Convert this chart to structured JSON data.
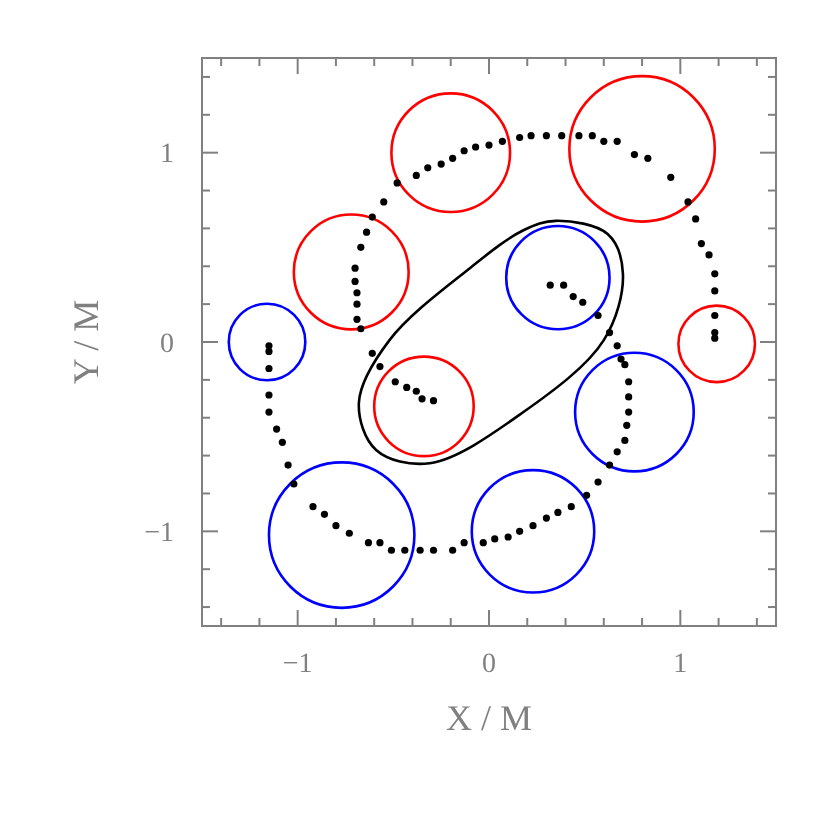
{
  "chart_data": {
    "type": "scatter",
    "xlabel": "X / M",
    "ylabel": "Y / M",
    "xlim": [
      -1.5,
      1.5
    ],
    "ylim": [
      -1.5,
      1.5
    ],
    "xticks": [
      {
        "value": -1.4,
        "label": null
      },
      {
        "value": -1.2,
        "label": null
      },
      {
        "value": -1,
        "label": "−1"
      },
      {
        "value": -0.8,
        "label": null
      },
      {
        "value": -0.6,
        "label": null
      },
      {
        "value": -0.4,
        "label": null
      },
      {
        "value": -0.2,
        "label": null
      },
      0,
      {
        "value": 0.2,
        "label": null
      },
      {
        "value": 0.4,
        "label": null
      },
      {
        "value": 0.6,
        "label": null
      },
      {
        "value": 0.8,
        "label": null
      },
      1,
      {
        "value": 1.2,
        "label": null
      },
      {
        "value": 1.4,
        "label": null
      }
    ],
    "yticks": [
      {
        "value": -1.4,
        "label": null
      },
      {
        "value": -1.2,
        "label": null
      },
      {
        "value": -1,
        "label": "−1"
      },
      {
        "value": -0.8,
        "label": null
      },
      {
        "value": -0.6,
        "label": null
      },
      {
        "value": -0.4,
        "label": null
      },
      {
        "value": -0.2,
        "label": null
      },
      0,
      {
        "value": 0.2,
        "label": null
      },
      {
        "value": 0.4,
        "label": null
      },
      {
        "value": 0.6,
        "label": null
      },
      {
        "value": 0.8,
        "label": null
      },
      1,
      {
        "value": 1.2,
        "label": null
      },
      {
        "value": 1.4,
        "label": null
      }
    ],
    "grid": false,
    "legend": false,
    "marker": "circle",
    "series": [
      {
        "type": "scatter",
        "color": "#000000",
        "x": [
          -1.15,
          -1.15,
          -1.15,
          -1.15,
          -1.15,
          -1.11,
          -1.08,
          -1.05,
          -1.02,
          -0.92,
          -0.86,
          -0.8,
          -0.73,
          -0.63,
          -0.57,
          -0.51,
          -0.44,
          -0.36,
          -0.29,
          -0.19,
          -0.13,
          -0.03,
          0.03,
          0.1,
          0.16,
          0.23,
          0.3,
          0.36,
          0.43,
          0.51,
          0.57,
          0.63,
          0.67,
          0.71,
          0.72,
          0.73,
          0.73,
          0.73,
          0.71,
          0.69,
          0.67,
          0.63,
          0.57,
          0.49,
          0.44,
          0.39,
          0.32,
          -0.67,
          -0.69,
          -0.69,
          -0.69,
          -0.7,
          -0.7,
          -0.67,
          -0.64,
          -0.61,
          -0.55,
          -0.48,
          -0.38,
          -0.32,
          -0.25,
          -0.19,
          -0.13,
          -0.07,
          0.0,
          0.07,
          0.16,
          0.22,
          0.3,
          0.38,
          0.47,
          0.54,
          0.6,
          0.67,
          0.76,
          0.83,
          0.95,
          1.04,
          1.08,
          1.11,
          1.15,
          1.18,
          1.18,
          1.18,
          1.18,
          1.18,
          -0.61,
          -0.57,
          -0.49,
          -0.43,
          -0.38,
          -0.35,
          -0.29
        ],
        "values": [
          -0.02,
          -0.05,
          -0.14,
          -0.28,
          -0.37,
          -0.46,
          -0.53,
          -0.65,
          -0.75,
          -0.87,
          -0.91,
          -0.97,
          -1.01,
          -1.06,
          -1.06,
          -1.1,
          -1.1,
          -1.1,
          -1.1,
          -1.1,
          -1.06,
          -1.06,
          -1.04,
          -1.03,
          -1.0,
          -0.97,
          -0.93,
          -0.9,
          -0.87,
          -0.81,
          -0.74,
          -0.65,
          -0.58,
          -0.52,
          -0.44,
          -0.37,
          -0.29,
          -0.21,
          -0.12,
          -0.09,
          -0.02,
          0.05,
          0.14,
          0.21,
          0.24,
          0.3,
          0.3,
          0.07,
          0.12,
          0.2,
          0.26,
          0.32,
          0.39,
          0.5,
          0.58,
          0.66,
          0.74,
          0.84,
          0.88,
          0.92,
          0.94,
          0.97,
          1.01,
          1.03,
          1.04,
          1.06,
          1.08,
          1.09,
          1.09,
          1.09,
          1.09,
          1.09,
          1.06,
          1.06,
          0.99,
          0.97,
          0.87,
          0.74,
          0.65,
          0.52,
          0.46,
          0.36,
          0.27,
          0.14,
          0.05,
          0.02,
          -0.06,
          -0.13,
          -0.21,
          -0.24,
          -0.26,
          -0.3,
          -0.31
        ]
      }
    ]
  }
}
